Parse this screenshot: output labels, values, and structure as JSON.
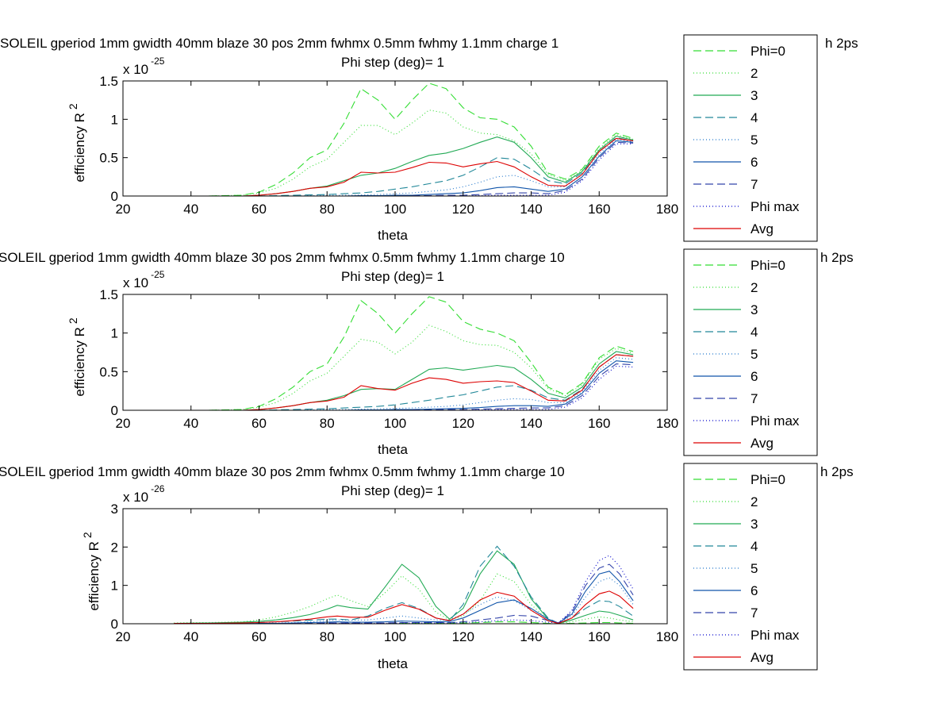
{
  "chart_data": [
    {
      "type": "line",
      "title": "SOLEIL gperiod 1mm gwidth 40mm blaze 30 pos 2mm fwhmx 0.5mm fwhmy 1.1mm charge 1",
      "title_tail": "h 2ps",
      "subtitle": "Phi step (deg)= 1",
      "xlabel": "theta",
      "ylabel": "efficiency R",
      "ylabel_sup": "2",
      "exponent_base": "x 10",
      "exponent": "-25",
      "xlim": [
        20,
        180
      ],
      "ylim": [
        0,
        1.5
      ],
      "xticks": [
        20,
        40,
        60,
        80,
        100,
        120,
        140,
        160,
        180
      ],
      "yticks": [
        0,
        0.5,
        1,
        1.5
      ],
      "legend_position": "outside-right",
      "x": [
        35,
        45,
        55,
        60,
        65,
        70,
        75,
        80,
        85,
        90,
        95,
        100,
        105,
        110,
        115,
        120,
        125,
        130,
        135,
        140,
        145,
        150,
        155,
        160,
        165,
        170
      ],
      "series": [
        {
          "name": "Phi=0",
          "color": "#33dd33",
          "dash": "10,5",
          "values": [
            0,
            0,
            0.01,
            0.05,
            0.15,
            0.3,
            0.5,
            0.6,
            0.95,
            1.4,
            1.25,
            1.0,
            1.25,
            1.47,
            1.4,
            1.15,
            1.02,
            1.0,
            0.9,
            0.65,
            0.3,
            0.22,
            0.35,
            0.65,
            0.82,
            0.75
          ]
        },
        {
          "name": "2",
          "color": "#33dd33",
          "dash": "1,3",
          "values": [
            0,
            0,
            0.01,
            0.04,
            0.1,
            0.22,
            0.38,
            0.48,
            0.7,
            0.92,
            0.92,
            0.8,
            0.95,
            1.12,
            1.08,
            0.9,
            0.82,
            0.8,
            0.72,
            0.55,
            0.28,
            0.2,
            0.33,
            0.62,
            0.8,
            0.74
          ]
        },
        {
          "name": "3",
          "color": "#22aa55",
          "dash": "",
          "values": [
            0,
            0,
            0,
            0.01,
            0.03,
            0.06,
            0.1,
            0.13,
            0.2,
            0.27,
            0.3,
            0.36,
            0.45,
            0.53,
            0.56,
            0.62,
            0.7,
            0.77,
            0.7,
            0.5,
            0.25,
            0.18,
            0.32,
            0.6,
            0.78,
            0.73
          ]
        },
        {
          "name": "4",
          "color": "#228899",
          "dash": "10,5",
          "values": [
            0,
            0,
            0,
            0,
            0.005,
            0.01,
            0.015,
            0.02,
            0.03,
            0.04,
            0.06,
            0.09,
            0.12,
            0.16,
            0.2,
            0.27,
            0.38,
            0.5,
            0.48,
            0.35,
            0.2,
            0.16,
            0.3,
            0.58,
            0.76,
            0.72
          ]
        },
        {
          "name": "5",
          "color": "#2277cc",
          "dash": "1,3",
          "values": [
            0,
            0,
            0,
            0,
            0,
            0,
            0.005,
            0.01,
            0.01,
            0.015,
            0.02,
            0.03,
            0.04,
            0.06,
            0.08,
            0.12,
            0.18,
            0.25,
            0.27,
            0.2,
            0.12,
            0.12,
            0.28,
            0.55,
            0.74,
            0.71
          ]
        },
        {
          "name": "6",
          "color": "#1155aa",
          "dash": "",
          "values": [
            0,
            0,
            0,
            0,
            0,
            0,
            0,
            0,
            0,
            0.005,
            0.005,
            0.01,
            0.01,
            0.02,
            0.03,
            0.04,
            0.07,
            0.11,
            0.12,
            0.09,
            0.06,
            0.09,
            0.25,
            0.52,
            0.72,
            0.7
          ]
        },
        {
          "name": "7",
          "color": "#3344aa",
          "dash": "10,5",
          "values": [
            0,
            0,
            0,
            0,
            0,
            0,
            0,
            0,
            0,
            0,
            0,
            0,
            0.005,
            0.005,
            0.01,
            0.01,
            0.02,
            0.03,
            0.04,
            0.04,
            0.03,
            0.07,
            0.22,
            0.5,
            0.7,
            0.69
          ]
        },
        {
          "name": "Phi max",
          "color": "#0000cc",
          "dash": "1,3",
          "values": [
            0,
            0,
            0,
            0,
            0,
            0,
            0,
            0,
            0,
            0,
            0,
            0,
            0,
            0,
            0,
            0,
            0.005,
            0.01,
            0.01,
            0.01,
            0.01,
            0.05,
            0.2,
            0.47,
            0.68,
            0.68
          ]
        },
        {
          "name": "Avg",
          "color": "#dd0000",
          "dash": "",
          "values": [
            0,
            0,
            0,
            0.01,
            0.03,
            0.06,
            0.1,
            0.12,
            0.18,
            0.31,
            0.3,
            0.31,
            0.37,
            0.44,
            0.43,
            0.38,
            0.42,
            0.45,
            0.38,
            0.25,
            0.14,
            0.13,
            0.28,
            0.58,
            0.75,
            0.72
          ]
        }
      ]
    },
    {
      "type": "line",
      "title": "SOLEIL gperiod 1mm gwidth 40mm blaze 30 pos 2mm fwhmx 0.5mm fwhmy 1.1mm charge 10",
      "title_tail": "h 2ps",
      "subtitle": "Phi step (deg)= 1",
      "xlabel": "theta",
      "ylabel": "efficiency R",
      "ylabel_sup": "2",
      "exponent_base": "x 10",
      "exponent": "-25",
      "xlim": [
        20,
        180
      ],
      "ylim": [
        0,
        1.5
      ],
      "xticks": [
        20,
        40,
        60,
        80,
        100,
        120,
        140,
        160,
        180
      ],
      "yticks": [
        0,
        0.5,
        1,
        1.5
      ],
      "legend_position": "outside-right",
      "x": [
        35,
        45,
        55,
        60,
        65,
        70,
        75,
        80,
        85,
        90,
        95,
        100,
        105,
        110,
        115,
        120,
        125,
        130,
        135,
        140,
        145,
        150,
        155,
        160,
        165,
        170
      ],
      "series": [
        {
          "name": "Phi=0",
          "color": "#33dd33",
          "dash": "10,5",
          "values": [
            0,
            0,
            0.01,
            0.05,
            0.15,
            0.3,
            0.5,
            0.6,
            0.95,
            1.42,
            1.25,
            1.0,
            1.25,
            1.47,
            1.4,
            1.15,
            1.05,
            1.0,
            0.9,
            0.62,
            0.3,
            0.2,
            0.35,
            0.68,
            0.83,
            0.76
          ]
        },
        {
          "name": "2",
          "color": "#33dd33",
          "dash": "1,3",
          "values": [
            0,
            0,
            0.01,
            0.04,
            0.1,
            0.22,
            0.38,
            0.48,
            0.7,
            0.92,
            0.88,
            0.73,
            0.88,
            1.1,
            1.02,
            0.9,
            0.85,
            0.84,
            0.75,
            0.55,
            0.28,
            0.19,
            0.33,
            0.66,
            0.8,
            0.74
          ]
        },
        {
          "name": "3",
          "color": "#22aa55",
          "dash": "",
          "values": [
            0,
            0,
            0,
            0.01,
            0.03,
            0.06,
            0.1,
            0.13,
            0.19,
            0.27,
            0.28,
            0.27,
            0.4,
            0.53,
            0.55,
            0.52,
            0.55,
            0.58,
            0.55,
            0.4,
            0.22,
            0.16,
            0.3,
            0.6,
            0.76,
            0.72
          ]
        },
        {
          "name": "4",
          "color": "#228899",
          "dash": "10,5",
          "values": [
            0,
            0,
            0,
            0,
            0.005,
            0.01,
            0.015,
            0.02,
            0.03,
            0.04,
            0.05,
            0.07,
            0.1,
            0.13,
            0.17,
            0.2,
            0.25,
            0.3,
            0.32,
            0.26,
            0.16,
            0.13,
            0.27,
            0.56,
            0.72,
            0.7
          ]
        },
        {
          "name": "5",
          "color": "#2277cc",
          "dash": "1,3",
          "values": [
            0,
            0,
            0,
            0,
            0,
            0,
            0.005,
            0.01,
            0.01,
            0.015,
            0.02,
            0.025,
            0.03,
            0.04,
            0.05,
            0.07,
            0.1,
            0.13,
            0.15,
            0.14,
            0.1,
            0.1,
            0.24,
            0.52,
            0.68,
            0.66
          ]
        },
        {
          "name": "6",
          "color": "#1155aa",
          "dash": "",
          "values": [
            0,
            0,
            0,
            0,
            0,
            0,
            0,
            0,
            0,
            0.005,
            0.005,
            0.01,
            0.01,
            0.015,
            0.02,
            0.025,
            0.035,
            0.05,
            0.06,
            0.06,
            0.05,
            0.08,
            0.22,
            0.48,
            0.64,
            0.62
          ]
        },
        {
          "name": "7",
          "color": "#3344aa",
          "dash": "10,5",
          "values": [
            0,
            0,
            0,
            0,
            0,
            0,
            0,
            0,
            0,
            0,
            0,
            0,
            0.005,
            0.005,
            0.01,
            0.01,
            0.015,
            0.02,
            0.025,
            0.03,
            0.03,
            0.06,
            0.19,
            0.44,
            0.6,
            0.59
          ]
        },
        {
          "name": "Phi max",
          "color": "#0000cc",
          "dash": "1,3",
          "values": [
            0,
            0,
            0,
            0,
            0,
            0,
            0,
            0,
            0,
            0,
            0,
            0,
            0,
            0,
            0,
            0,
            0.005,
            0.01,
            0.01,
            0.01,
            0.01,
            0.04,
            0.16,
            0.4,
            0.57,
            0.56
          ]
        },
        {
          "name": "Avg",
          "color": "#dd0000",
          "dash": "",
          "values": [
            0,
            0,
            0,
            0.01,
            0.03,
            0.06,
            0.1,
            0.12,
            0.17,
            0.32,
            0.28,
            0.26,
            0.35,
            0.42,
            0.4,
            0.35,
            0.37,
            0.38,
            0.36,
            0.25,
            0.13,
            0.12,
            0.26,
            0.56,
            0.72,
            0.7
          ]
        }
      ]
    },
    {
      "type": "line",
      "title": "SOLEIL gperiod 1mm gwidth 40mm blaze 30 pos 2mm fwhmx 0.5mm fwhmy 1.1mm charge 10",
      "title_tail": "h 2ps",
      "subtitle": "Phi step (deg)= 1",
      "xlabel": "theta",
      "ylabel": "efficiency R",
      "ylabel_sup": "2",
      "exponent_base": "x 10",
      "exponent": "-26",
      "xlim": [
        20,
        180
      ],
      "ylim": [
        0,
        3
      ],
      "xticks": [
        20,
        40,
        60,
        80,
        100,
        120,
        140,
        160,
        180
      ],
      "yticks": [
        0,
        1,
        2,
        3
      ],
      "legend_position": "outside-right",
      "x": [
        35,
        45,
        55,
        60,
        65,
        70,
        75,
        80,
        83,
        87,
        92,
        97,
        102,
        107,
        112,
        116,
        120,
        125,
        130,
        135,
        140,
        145,
        148,
        152,
        156,
        160,
        163,
        166,
        170
      ],
      "series": [
        {
          "name": "Phi=0",
          "color": "#33dd33",
          "dash": "10,5",
          "values": [
            0,
            0,
            0,
            0,
            0,
            0,
            0,
            0,
            0,
            0,
            0,
            0.01,
            0.02,
            0.02,
            0.02,
            0.02,
            0.02,
            0.03,
            0.05,
            0.05,
            0.03,
            0.01,
            0.0,
            0.01,
            0.02,
            0.03,
            0.03,
            0.02,
            0.01
          ]
        },
        {
          "name": "2",
          "color": "#33dd33",
          "dash": "1,3",
          "values": [
            0.02,
            0.03,
            0.05,
            0.1,
            0.18,
            0.3,
            0.45,
            0.65,
            0.75,
            0.6,
            0.45,
            0.8,
            1.25,
            0.9,
            0.3,
            0.1,
            0.2,
            0.6,
            1.3,
            1.1,
            0.5,
            0.1,
            0.01,
            0.05,
            0.12,
            0.18,
            0.15,
            0.1,
            0.05
          ]
        },
        {
          "name": "3",
          "color": "#22aa55",
          "dash": "",
          "values": [
            0.01,
            0.02,
            0.04,
            0.06,
            0.1,
            0.16,
            0.24,
            0.38,
            0.48,
            0.42,
            0.38,
            0.95,
            1.55,
            1.2,
            0.45,
            0.12,
            0.4,
            1.3,
            1.9,
            1.55,
            0.65,
            0.12,
            0.01,
            0.1,
            0.22,
            0.33,
            0.3,
            0.22,
            0.1
          ]
        },
        {
          "name": "4",
          "color": "#228899",
          "dash": "10,5",
          "values": [
            0,
            0.01,
            0.02,
            0.03,
            0.05,
            0.07,
            0.09,
            0.12,
            0.12,
            0.1,
            0.2,
            0.4,
            0.55,
            0.4,
            0.15,
            0.08,
            0.5,
            1.5,
            2.02,
            1.5,
            0.7,
            0.15,
            0.01,
            0.15,
            0.4,
            0.6,
            0.58,
            0.45,
            0.2
          ]
        },
        {
          "name": "5",
          "color": "#2277cc",
          "dash": "1,3",
          "values": [
            0,
            0,
            0.01,
            0.01,
            0.02,
            0.03,
            0.05,
            0.08,
            0.1,
            0.09,
            0.1,
            0.15,
            0.2,
            0.15,
            0.1,
            0.1,
            0.25,
            0.5,
            0.7,
            0.6,
            0.35,
            0.08,
            0.02,
            0.2,
            0.7,
            1.1,
            1.2,
            1.0,
            0.5
          ]
        },
        {
          "name": "6",
          "color": "#1155aa",
          "dash": "",
          "values": [
            0,
            0,
            0,
            0.01,
            0.01,
            0.02,
            0.03,
            0.04,
            0.05,
            0.04,
            0.04,
            0.05,
            0.07,
            0.06,
            0.05,
            0.06,
            0.15,
            0.35,
            0.55,
            0.62,
            0.4,
            0.12,
            0.02,
            0.25,
            0.85,
            1.3,
            1.37,
            1.1,
            0.6
          ]
        },
        {
          "name": "7",
          "color": "#3344aa",
          "dash": "10,5",
          "values": [
            0,
            0,
            0,
            0,
            0,
            0.01,
            0.01,
            0.02,
            0.02,
            0.02,
            0.02,
            0.02,
            0.03,
            0.03,
            0.03,
            0.03,
            0.05,
            0.1,
            0.15,
            0.22,
            0.2,
            0.08,
            0.02,
            0.3,
            1.0,
            1.45,
            1.55,
            1.3,
            0.75
          ]
        },
        {
          "name": "Phi max",
          "color": "#0000cc",
          "dash": "1,3",
          "values": [
            0,
            0,
            0,
            0,
            0,
            0,
            0,
            0.01,
            0.01,
            0.01,
            0.01,
            0.01,
            0.02,
            0.02,
            0.02,
            0.02,
            0.03,
            0.05,
            0.08,
            0.1,
            0.08,
            0.04,
            0.02,
            0.35,
            1.1,
            1.65,
            1.78,
            1.5,
            0.9
          ]
        },
        {
          "name": "Avg",
          "color": "#dd0000",
          "dash": "",
          "values": [
            0.01,
            0.01,
            0.02,
            0.03,
            0.05,
            0.08,
            0.12,
            0.18,
            0.2,
            0.17,
            0.17,
            0.35,
            0.5,
            0.38,
            0.15,
            0.08,
            0.25,
            0.62,
            0.82,
            0.72,
            0.35,
            0.08,
            0.01,
            0.15,
            0.5,
            0.78,
            0.85,
            0.72,
            0.4
          ]
        }
      ]
    }
  ]
}
